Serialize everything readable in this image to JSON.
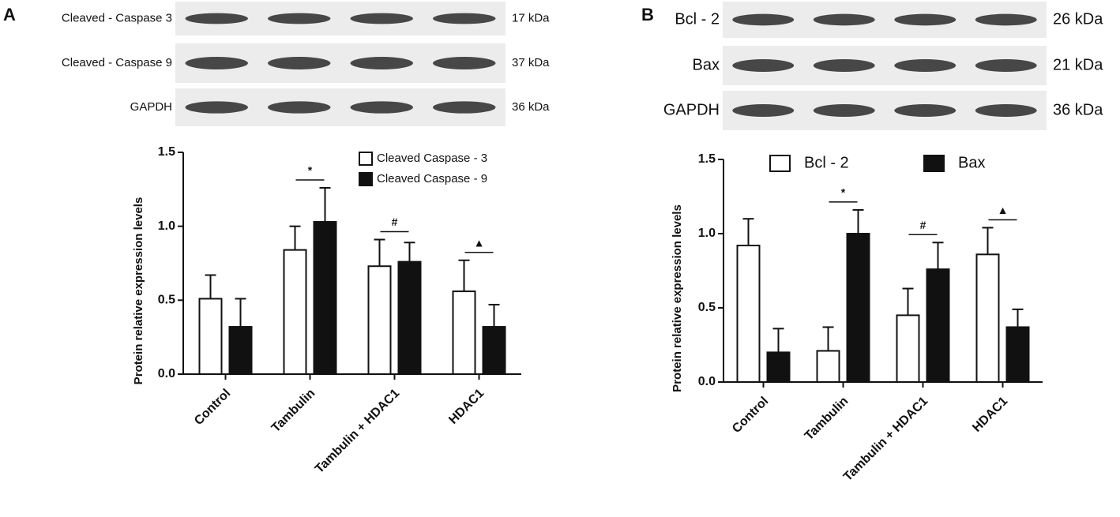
{
  "chart_data": [
    {
      "type": "bar",
      "panel": "A",
      "blots": [
        {
          "label": "Cleaved - Caspase 3",
          "size": "17 kDa"
        },
        {
          "label": "Cleaved - Caspase 9",
          "size": "37 kDa"
        },
        {
          "label": "GAPDH",
          "size": "36 kDa"
        }
      ],
      "y_label": "Protein relative expression levels",
      "categories": [
        "Control",
        "Tambulin",
        "Tambulin + HDAC1",
        "HDAC1"
      ],
      "series": [
        {
          "name": "Cleaved Caspase - 3",
          "color": "#ffffff",
          "values": [
            0.51,
            0.84,
            0.73,
            0.56
          ],
          "errors": [
            0.16,
            0.16,
            0.18,
            0.21
          ]
        },
        {
          "name": "Cleaved Caspase - 9",
          "color": "#111111",
          "values": [
            0.32,
            1.03,
            0.76,
            0.32
          ],
          "errors": [
            0.19,
            0.23,
            0.13,
            0.15
          ]
        }
      ],
      "significance": [
        null,
        "*",
        "#",
        "▲"
      ],
      "ylim": [
        0,
        1.5
      ],
      "yticks": [
        {
          "value": 0,
          "label": "0.0"
        },
        0.5,
        {
          "value": 1,
          "label": "1.0"
        },
        1.5
      ]
    },
    {
      "type": "bar",
      "panel": "B",
      "blots": [
        {
          "label": "Bcl - 2",
          "size": "26 kDa"
        },
        {
          "label": "Bax",
          "size": "21 kDa"
        },
        {
          "label": "GAPDH",
          "size": "36 kDa"
        }
      ],
      "y_label": "Protein relative expression levels",
      "categories": [
        "Control",
        "Tambulin",
        "Tambulin + HDAC1",
        "HDAC1"
      ],
      "series": [
        {
          "name": "Bcl - 2",
          "color": "#ffffff",
          "values": [
            0.92,
            0.21,
            0.45,
            0.86
          ],
          "errors": [
            0.18,
            0.16,
            0.18,
            0.18
          ]
        },
        {
          "name": "Bax",
          "color": "#111111",
          "values": [
            0.2,
            1.0,
            0.76,
            0.37
          ],
          "errors": [
            0.16,
            0.16,
            0.18,
            0.12
          ]
        }
      ],
      "significance": [
        null,
        "*",
        "#",
        "▲"
      ],
      "ylim": [
        0,
        1.5
      ],
      "yticks": [
        {
          "value": 0,
          "label": "0.0"
        },
        0.5,
        {
          "value": 1,
          "label": "1.0"
        },
        1.5
      ]
    }
  ]
}
